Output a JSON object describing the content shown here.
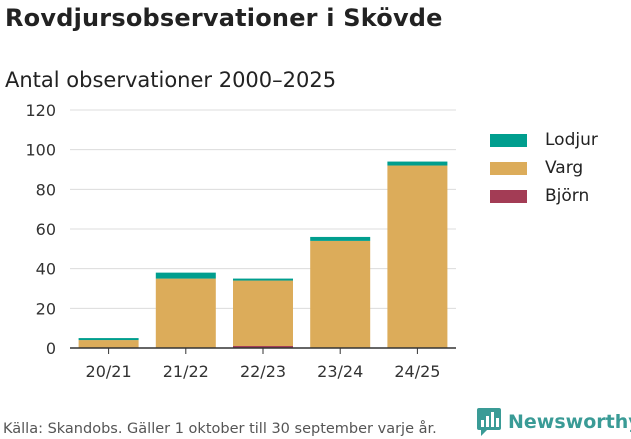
{
  "title": "Rovdjursobservationer i Skövde",
  "subtitle": "Antal observationer 2000–2025",
  "source": "Källa: Skandobs. Gäller 1 oktober till 30 september varje år.",
  "logo": {
    "text": "Newsworthy"
  },
  "colors": {
    "Lodjur": "#009e8e",
    "Varg": "#dcac5a",
    "Björn": "#a33c55"
  },
  "chart_data": {
    "type": "bar",
    "stacked": true,
    "categories": [
      "20/21",
      "21/22",
      "22/23",
      "23/24",
      "24/25"
    ],
    "series": [
      {
        "name": "Björn",
        "values": [
          0,
          0,
          1,
          0,
          0
        ]
      },
      {
        "name": "Varg",
        "values": [
          4,
          35,
          33,
          54,
          92
        ]
      },
      {
        "name": "Lodjur",
        "values": [
          1,
          3,
          1,
          2,
          2
        ]
      }
    ],
    "ylim": [
      0,
      120
    ],
    "yticks": [
      0,
      20,
      40,
      60,
      80,
      100,
      120
    ],
    "grid": true,
    "legend": "right"
  }
}
